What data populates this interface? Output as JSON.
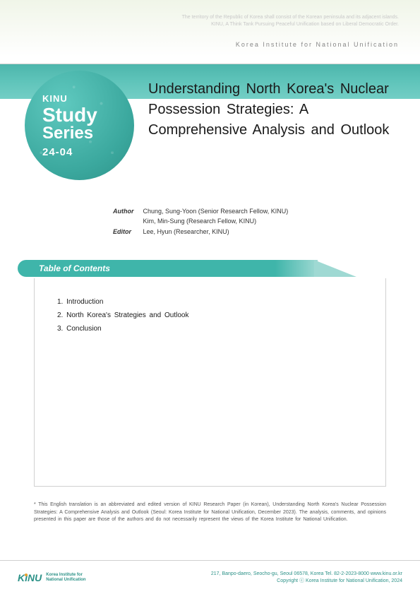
{
  "header": {
    "motto_line1": "The territory of the Republic of Korea shall consist of the Korean peninsula and its adjacent islands.",
    "motto_line2": "KINU, A Think Tank Pursuing Peaceful Unification based on Liberal Democratic Order.",
    "institute": "Korea Institute for National Unification"
  },
  "badge": {
    "org": "KINU",
    "line1": "Study",
    "line2": "Series",
    "issue": "24-04"
  },
  "title": "Understanding North Korea's Nuclear Possession Strategies: A Comprehensive Analysis and Outlook",
  "credits": {
    "author_label": "Author",
    "author1": "Chung, Sung-Yoon (Senior Research Fellow, KINU)",
    "author2": "Kim, Min-Sung   (Research Fellow, KINU)",
    "editor_label": "Editor",
    "editor1": "Lee, Hyun      (Researcher, KINU)"
  },
  "toc": {
    "heading": "Table of Contents",
    "items": [
      "1. Introduction",
      "2. North Korea's Strategies and Outlook",
      "3. Conclusion"
    ]
  },
  "footnote": "* This English translation is an abbreviated and edited version of KINU Research Paper (in Korean), Understanding North Korea's Nuclear Possession Strategies: A Comprehensive Analysis and Outlook (Seoul: Korea Institute for National Unification, December 2023). The analysis, comments, and opinions presented in this paper are those of the authors and do not necessarily represent the views of the Korea Institute for National Unification.",
  "footer": {
    "logo_mark": "KINU",
    "logo_text_line1": "Korea Institute for",
    "logo_text_line2": "National Unification",
    "address": "217, Banpo-daero, Seocho-gu, Seoul 06578, Korea Tel. 82-2-2023-8000 www.kinu.or.kr",
    "copyright": "Copyright ⓒ Korea Institute for National Unification, 2024"
  },
  "colors": {
    "teal_primary": "#3fb5aa",
    "teal_dark": "#2d9288",
    "teal_light": "#9fd9d3",
    "text_dark": "#1a1a1a",
    "text_gray": "#888888",
    "border": "#d0d0d0"
  }
}
